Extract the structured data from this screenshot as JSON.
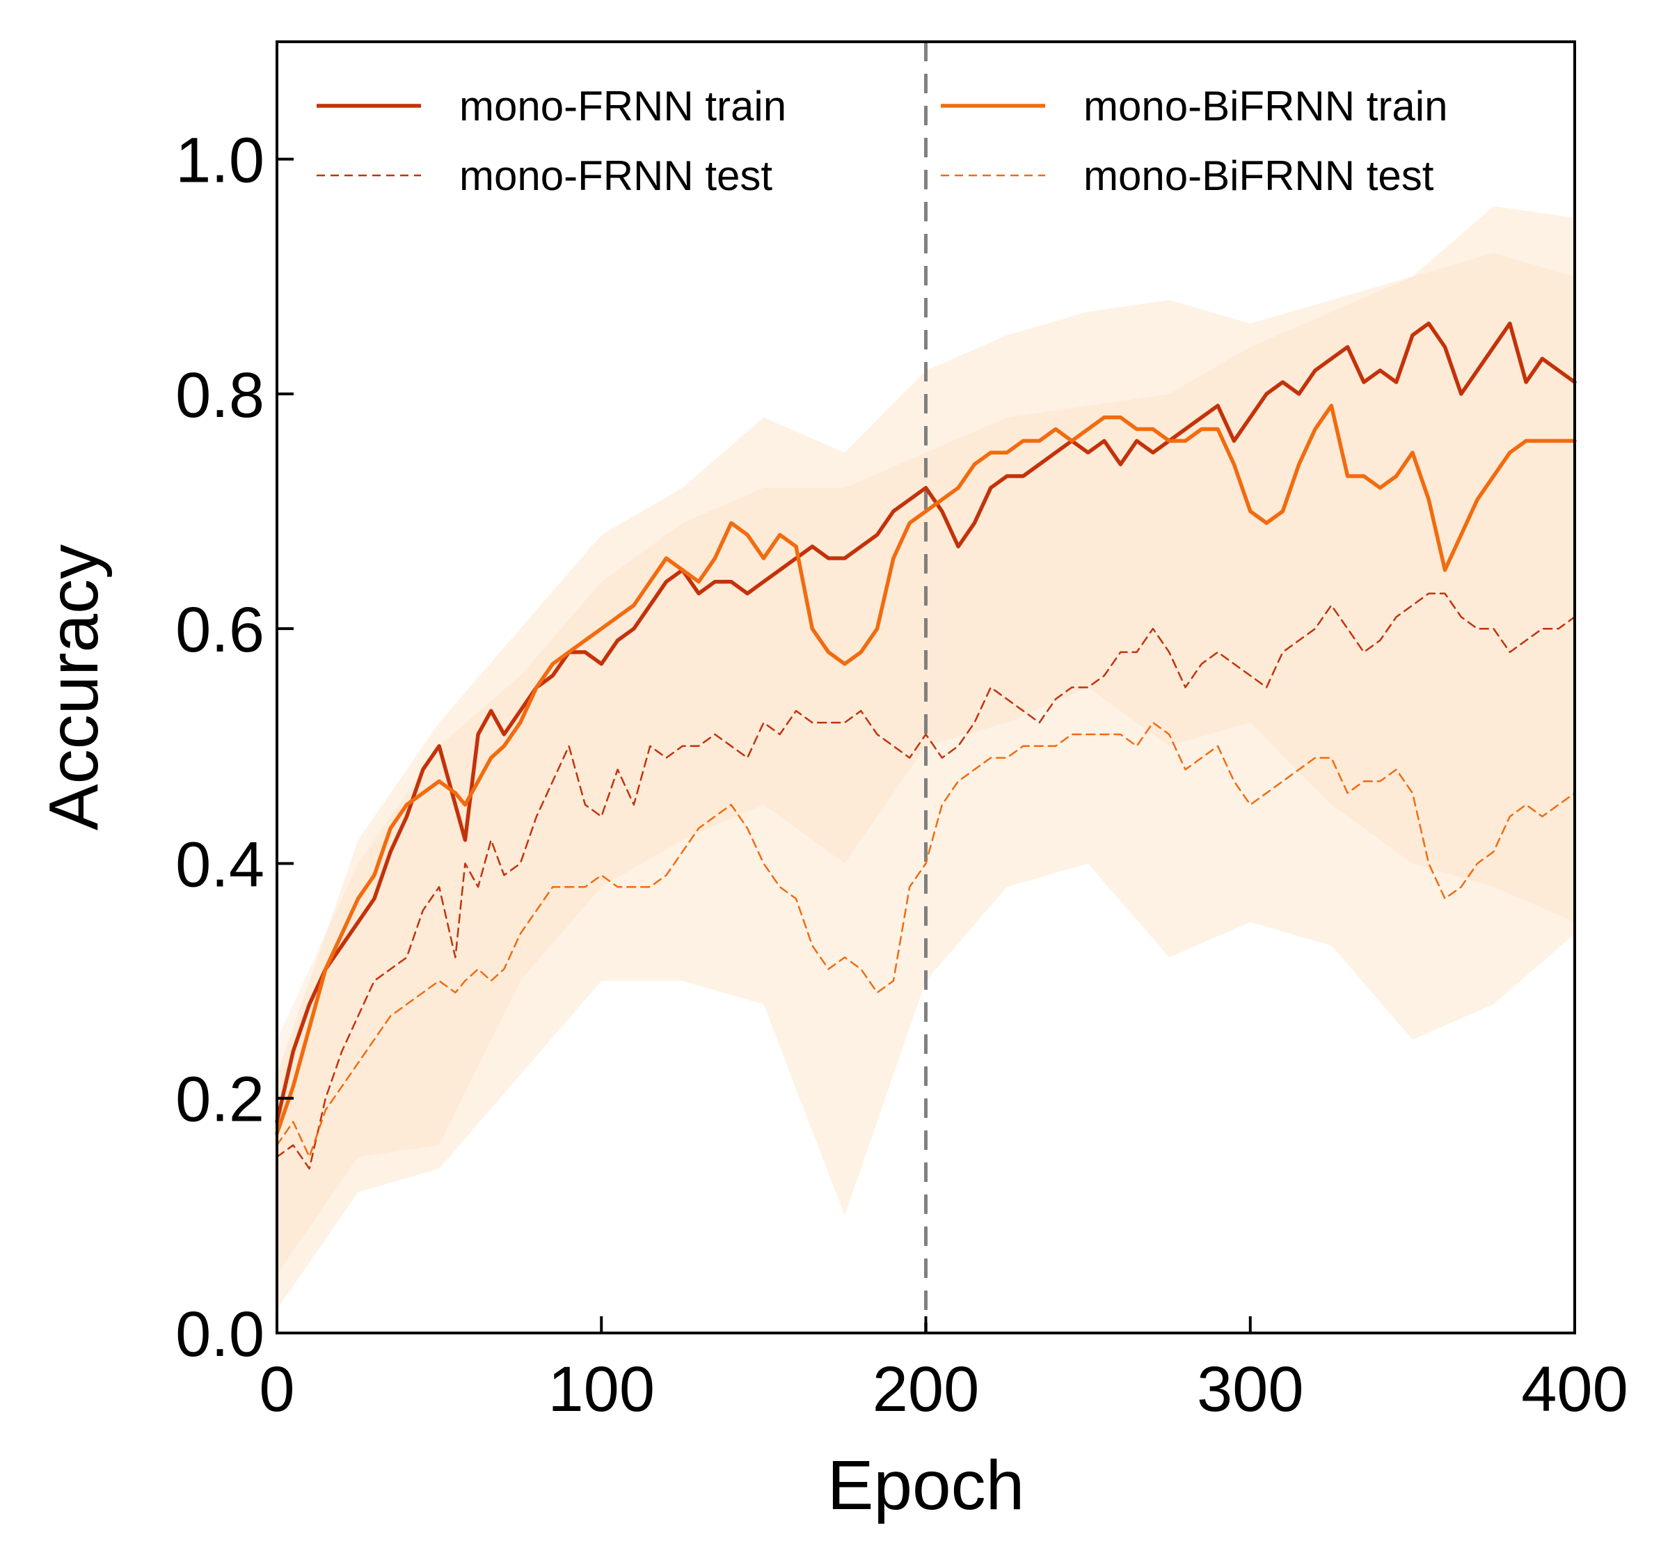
{
  "chart_data": {
    "type": "line",
    "xlabel": "Epoch",
    "ylabel": "Accuracy",
    "xlim": [
      0,
      400
    ],
    "ylim": [
      0,
      1.1
    ],
    "xticks": [
      0,
      100,
      200,
      300,
      400
    ],
    "xtick_labels": [
      "0",
      "100",
      "200",
      "300",
      "400"
    ],
    "yticks": [
      0,
      0.2,
      0.4,
      0.6,
      0.8,
      1.0
    ],
    "ytick_labels": [
      "0.0",
      "0.2",
      "0.4",
      "0.6",
      "0.8",
      "1.0"
    ],
    "grid": false,
    "legend_position": "top",
    "legend_columns": 2,
    "reference_line": {
      "x": 200,
      "style": "dashed",
      "color": "#808080"
    },
    "series": [
      {
        "name": "mono-FRNN train",
        "color": "#c4320a",
        "style": "solid",
        "x": [
          0,
          5,
          10,
          15,
          20,
          25,
          30,
          35,
          40,
          45,
          50,
          55,
          58,
          62,
          66,
          70,
          75,
          80,
          85,
          90,
          95,
          100,
          105,
          110,
          115,
          120,
          125,
          130,
          135,
          140,
          145,
          150,
          155,
          160,
          165,
          170,
          175,
          180,
          185,
          190,
          195,
          200,
          205,
          210,
          215,
          220,
          225,
          230,
          235,
          240,
          245,
          250,
          255,
          260,
          265,
          270,
          275,
          280,
          285,
          290,
          295,
          300,
          305,
          310,
          315,
          320,
          325,
          330,
          335,
          340,
          345,
          350,
          355,
          360,
          365,
          370,
          375,
          380,
          385,
          390,
          395,
          400
        ],
        "values": [
          0.18,
          0.24,
          0.28,
          0.31,
          0.33,
          0.35,
          0.37,
          0.41,
          0.44,
          0.48,
          0.5,
          0.45,
          0.42,
          0.51,
          0.53,
          0.51,
          0.53,
          0.55,
          0.56,
          0.58,
          0.58,
          0.57,
          0.59,
          0.6,
          0.62,
          0.64,
          0.65,
          0.63,
          0.64,
          0.64,
          0.63,
          0.64,
          0.65,
          0.66,
          0.67,
          0.66,
          0.66,
          0.67,
          0.68,
          0.7,
          0.71,
          0.72,
          0.7,
          0.67,
          0.69,
          0.72,
          0.73,
          0.73,
          0.74,
          0.75,
          0.76,
          0.75,
          0.76,
          0.74,
          0.76,
          0.75,
          0.76,
          0.77,
          0.78,
          0.79,
          0.76,
          0.78,
          0.8,
          0.81,
          0.8,
          0.82,
          0.83,
          0.84,
          0.81,
          0.82,
          0.81,
          0.85,
          0.86,
          0.84,
          0.8,
          0.82,
          0.84,
          0.86,
          0.81,
          0.83,
          0.82,
          0.81
        ]
      },
      {
        "name": "mono-FRNN test",
        "color": "#c4320a",
        "style": "dashed",
        "x": [
          0,
          5,
          10,
          15,
          20,
          25,
          30,
          35,
          40,
          45,
          50,
          55,
          58,
          62,
          66,
          70,
          75,
          80,
          85,
          90,
          95,
          100,
          105,
          110,
          115,
          120,
          125,
          130,
          135,
          140,
          145,
          150,
          155,
          160,
          165,
          170,
          175,
          180,
          185,
          190,
          195,
          200,
          205,
          210,
          215,
          220,
          225,
          230,
          235,
          240,
          245,
          250,
          255,
          260,
          265,
          270,
          275,
          280,
          285,
          290,
          295,
          300,
          305,
          310,
          315,
          320,
          325,
          330,
          335,
          340,
          345,
          350,
          355,
          360,
          365,
          370,
          375,
          380,
          385,
          390,
          395,
          400
        ],
        "values": [
          0.15,
          0.16,
          0.14,
          0.2,
          0.24,
          0.27,
          0.3,
          0.31,
          0.32,
          0.36,
          0.38,
          0.32,
          0.4,
          0.38,
          0.42,
          0.39,
          0.4,
          0.44,
          0.47,
          0.5,
          0.45,
          0.44,
          0.48,
          0.45,
          0.5,
          0.49,
          0.5,
          0.5,
          0.51,
          0.5,
          0.49,
          0.52,
          0.51,
          0.53,
          0.52,
          0.52,
          0.52,
          0.53,
          0.51,
          0.5,
          0.49,
          0.51,
          0.49,
          0.5,
          0.52,
          0.55,
          0.54,
          0.53,
          0.52,
          0.54,
          0.55,
          0.55,
          0.56,
          0.58,
          0.58,
          0.6,
          0.58,
          0.55,
          0.57,
          0.58,
          0.57,
          0.56,
          0.55,
          0.58,
          0.59,
          0.6,
          0.62,
          0.6,
          0.58,
          0.59,
          0.61,
          0.62,
          0.63,
          0.63,
          0.61,
          0.6,
          0.6,
          0.58,
          0.59,
          0.6,
          0.6,
          0.61
        ]
      },
      {
        "name": "mono-BiFRNN train",
        "color": "#f26b0f",
        "style": "solid",
        "x": [
          0,
          5,
          10,
          15,
          20,
          25,
          30,
          35,
          40,
          45,
          50,
          55,
          58,
          62,
          66,
          70,
          75,
          80,
          85,
          90,
          95,
          100,
          105,
          110,
          115,
          120,
          125,
          130,
          135,
          140,
          145,
          150,
          155,
          160,
          165,
          170,
          175,
          180,
          185,
          190,
          195,
          200,
          205,
          210,
          215,
          220,
          225,
          230,
          235,
          240,
          245,
          250,
          255,
          260,
          265,
          270,
          275,
          280,
          285,
          290,
          295,
          300,
          305,
          310,
          315,
          320,
          325,
          330,
          335,
          340,
          345,
          350,
          355,
          360,
          365,
          370,
          375,
          380,
          385,
          390,
          395,
          400
        ],
        "values": [
          0.17,
          0.21,
          0.26,
          0.31,
          0.34,
          0.37,
          0.39,
          0.43,
          0.45,
          0.46,
          0.47,
          0.46,
          0.45,
          0.47,
          0.49,
          0.5,
          0.52,
          0.55,
          0.57,
          0.58,
          0.59,
          0.6,
          0.61,
          0.62,
          0.64,
          0.66,
          0.65,
          0.64,
          0.66,
          0.69,
          0.68,
          0.66,
          0.68,
          0.67,
          0.6,
          0.58,
          0.57,
          0.58,
          0.6,
          0.66,
          0.69,
          0.7,
          0.71,
          0.72,
          0.74,
          0.75,
          0.75,
          0.76,
          0.76,
          0.77,
          0.76,
          0.77,
          0.78,
          0.78,
          0.77,
          0.77,
          0.76,
          0.76,
          0.77,
          0.77,
          0.74,
          0.7,
          0.69,
          0.7,
          0.74,
          0.77,
          0.79,
          0.73,
          0.73,
          0.72,
          0.73,
          0.75,
          0.71,
          0.65,
          0.68,
          0.71,
          0.73,
          0.75,
          0.76,
          0.76,
          0.76,
          0.76
        ]
      },
      {
        "name": "mono-BiFRNN test",
        "color": "#f26b0f",
        "style": "dashed",
        "x": [
          0,
          5,
          10,
          15,
          20,
          25,
          30,
          35,
          40,
          45,
          50,
          55,
          58,
          62,
          66,
          70,
          75,
          80,
          85,
          90,
          95,
          100,
          105,
          110,
          115,
          120,
          125,
          130,
          135,
          140,
          145,
          150,
          155,
          160,
          165,
          170,
          175,
          180,
          185,
          190,
          195,
          200,
          205,
          210,
          215,
          220,
          225,
          230,
          235,
          240,
          245,
          250,
          255,
          260,
          265,
          270,
          275,
          280,
          285,
          290,
          295,
          300,
          305,
          310,
          315,
          320,
          325,
          330,
          335,
          340,
          345,
          350,
          355,
          360,
          365,
          370,
          375,
          380,
          385,
          390,
          395,
          400
        ],
        "values": [
          0.16,
          0.18,
          0.15,
          0.19,
          0.21,
          0.23,
          0.25,
          0.27,
          0.28,
          0.29,
          0.3,
          0.29,
          0.3,
          0.31,
          0.3,
          0.31,
          0.34,
          0.36,
          0.38,
          0.38,
          0.38,
          0.39,
          0.38,
          0.38,
          0.38,
          0.39,
          0.41,
          0.43,
          0.44,
          0.45,
          0.43,
          0.4,
          0.38,
          0.37,
          0.33,
          0.31,
          0.32,
          0.31,
          0.29,
          0.3,
          0.38,
          0.4,
          0.45,
          0.47,
          0.48,
          0.49,
          0.49,
          0.5,
          0.5,
          0.5,
          0.51,
          0.51,
          0.51,
          0.51,
          0.5,
          0.52,
          0.51,
          0.48,
          0.49,
          0.5,
          0.47,
          0.45,
          0.46,
          0.47,
          0.48,
          0.49,
          0.49,
          0.46,
          0.47,
          0.47,
          0.48,
          0.46,
          0.4,
          0.37,
          0.38,
          0.4,
          0.41,
          0.44,
          0.45,
          0.44,
          0.45,
          0.46
        ]
      }
    ],
    "bands": [
      {
        "series": "mono-FRNN",
        "color": "#fbe0c8",
        "opacity": 0.35,
        "x": [
          0,
          25,
          50,
          75,
          100,
          125,
          150,
          175,
          200,
          225,
          250,
          275,
          300,
          325,
          350,
          375,
          400
        ],
        "upper": [
          0.25,
          0.4,
          0.5,
          0.56,
          0.64,
          0.69,
          0.72,
          0.72,
          0.75,
          0.78,
          0.79,
          0.8,
          0.84,
          0.87,
          0.9,
          0.92,
          0.9
        ],
        "lower": [
          0.05,
          0.15,
          0.16,
          0.3,
          0.38,
          0.42,
          0.45,
          0.4,
          0.5,
          0.52,
          0.55,
          0.5,
          0.52,
          0.45,
          0.4,
          0.38,
          0.35
        ]
      },
      {
        "series": "mono-BiFRNN",
        "color": "#fdd9b5",
        "opacity": 0.35,
        "x": [
          0,
          25,
          50,
          75,
          100,
          125,
          150,
          175,
          200,
          225,
          250,
          275,
          300,
          325,
          350,
          375,
          400
        ],
        "upper": [
          0.22,
          0.42,
          0.52,
          0.6,
          0.68,
          0.72,
          0.78,
          0.75,
          0.82,
          0.85,
          0.87,
          0.88,
          0.86,
          0.88,
          0.9,
          0.96,
          0.95
        ],
        "lower": [
          0.02,
          0.12,
          0.14,
          0.22,
          0.3,
          0.3,
          0.28,
          0.1,
          0.3,
          0.38,
          0.4,
          0.32,
          0.35,
          0.33,
          0.25,
          0.28,
          0.34
        ]
      }
    ]
  }
}
